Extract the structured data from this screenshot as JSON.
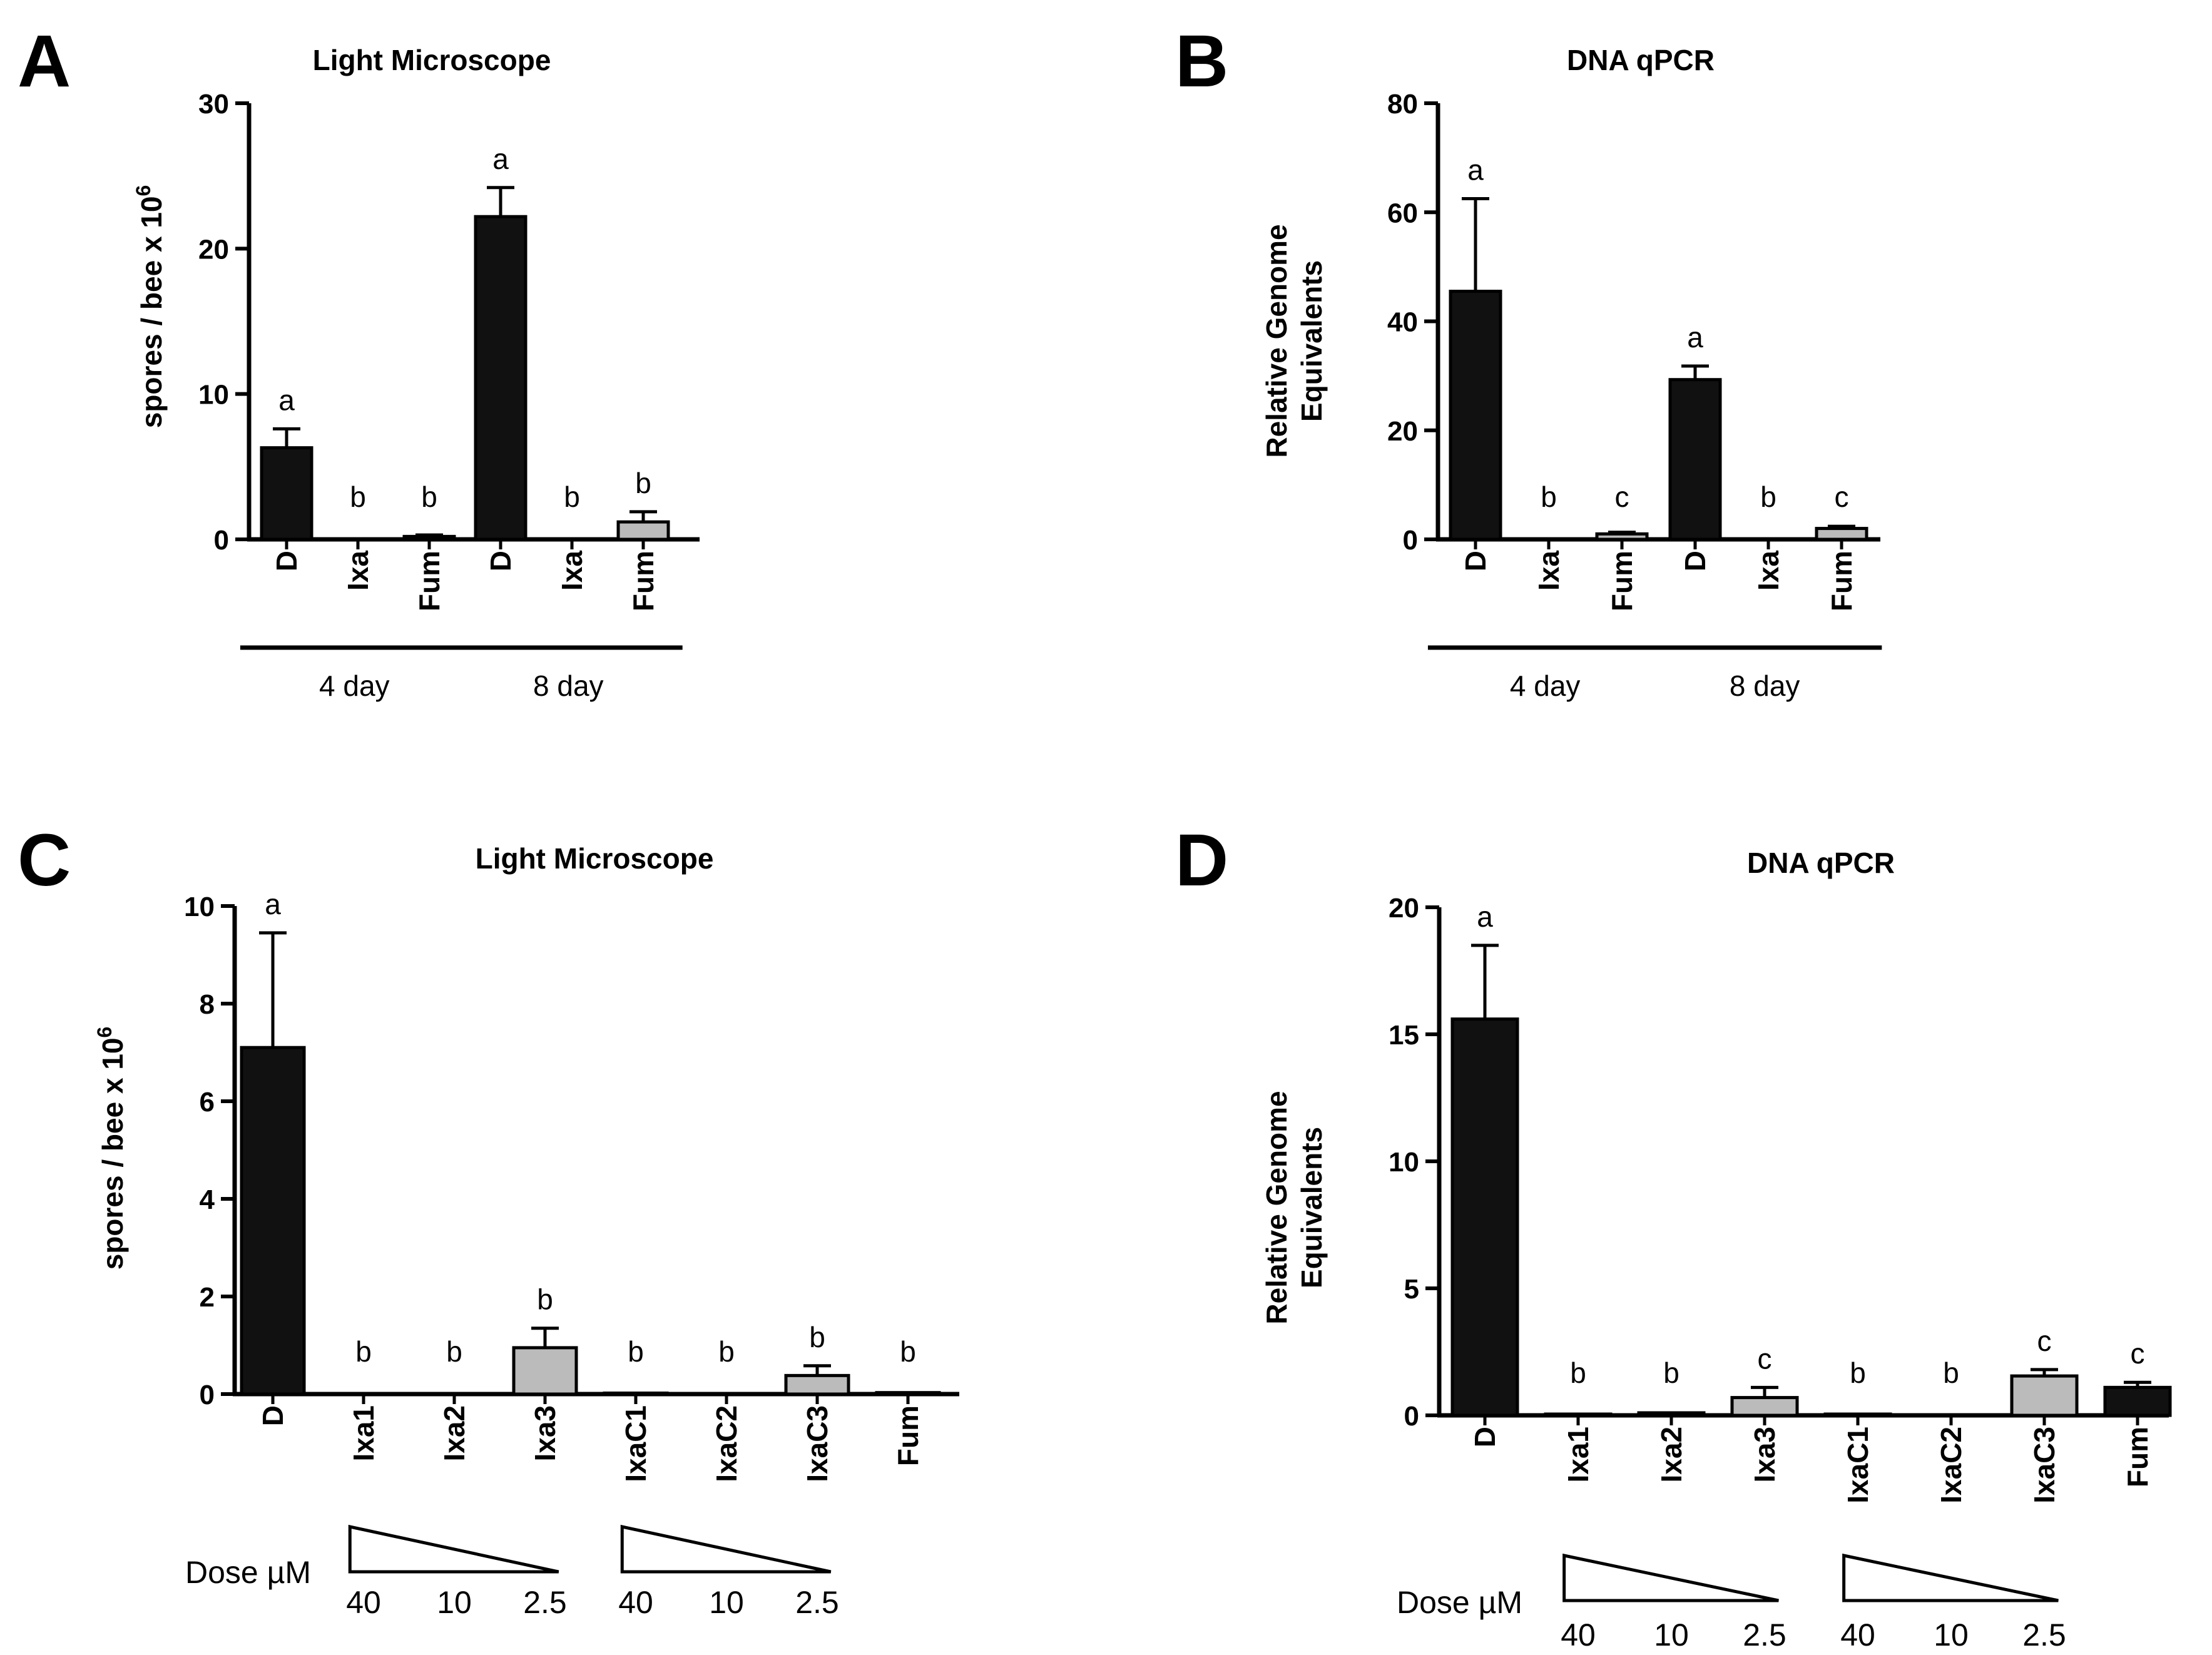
{
  "chart_data": [
    {
      "panel": "A",
      "type": "bar",
      "title": "Light Microscope",
      "ylabel_main": "spores / bee x 10",
      "ylabel_sup": "6",
      "ylim": [
        0,
        30
      ],
      "yticks": [
        0,
        10,
        20,
        30
      ],
      "categories": [
        "D",
        "Ixa",
        "Fum",
        "D",
        "Ixa",
        "Fum"
      ],
      "values": [
        6.3,
        0,
        0.2,
        22.2,
        0,
        1.2
      ],
      "errors": [
        1.3,
        0,
        0.1,
        2.0,
        0,
        0.7
      ],
      "colors": [
        "#111111",
        "#111111",
        "#bbbbbb",
        "#111111",
        "#111111",
        "#bbbbbb"
      ],
      "significance": [
        "a",
        "b",
        "b",
        "a",
        "b",
        "b"
      ],
      "groups": [
        {
          "label": "4 day",
          "from": 0,
          "to": 2
        },
        {
          "label": "8 day",
          "from": 3,
          "to": 5
        }
      ]
    },
    {
      "panel": "B",
      "type": "bar",
      "title": "DNA qPCR",
      "ylabel_lines": [
        "Relative Genome",
        "Equivalents"
      ],
      "ylim": [
        0,
        80
      ],
      "yticks": [
        0,
        20,
        40,
        60,
        80
      ],
      "categories": [
        "D",
        "Ixa",
        "Fum",
        "D",
        "Ixa",
        "Fum"
      ],
      "values": [
        45.5,
        0,
        1.0,
        29.3,
        0,
        2.0
      ],
      "errors": [
        17.0,
        0,
        0.3,
        2.5,
        0,
        0.4
      ],
      "colors": [
        "#111111",
        "#111111",
        "#bbbbbb",
        "#111111",
        "#111111",
        "#bbbbbb"
      ],
      "significance": [
        "a",
        "b",
        "c",
        "a",
        "b",
        "c"
      ],
      "groups": [
        {
          "label": "4 day",
          "from": 0,
          "to": 2
        },
        {
          "label": "8 day",
          "from": 3,
          "to": 5
        }
      ]
    },
    {
      "panel": "C",
      "type": "bar",
      "title": "Light Microscope",
      "ylabel_main": "spores / bee x 10",
      "ylabel_sup": "6",
      "ylim": [
        0,
        10
      ],
      "yticks": [
        0,
        2,
        4,
        6,
        8,
        10
      ],
      "categories": [
        "D",
        "Ixa1",
        "Ixa2",
        "Ixa3",
        "IxaC1",
        "IxaC2",
        "IxaC3",
        "Fum"
      ],
      "values": [
        7.1,
        0,
        0,
        0.95,
        0.02,
        0,
        0.38,
        0.03
      ],
      "errors": [
        2.35,
        0,
        0,
        0.4,
        0,
        0,
        0.2,
        0
      ],
      "colors": [
        "#111111",
        "#111111",
        "#111111",
        "#bbbbbb",
        "#111111",
        "#111111",
        "#bbbbbb",
        "#111111"
      ],
      "significance": [
        "a",
        "b",
        "b",
        "b",
        "b",
        "b",
        "b",
        "b"
      ],
      "dose_label": "Dose µM",
      "dose_groups": [
        {
          "from": 1,
          "to": 3,
          "values": [
            "40",
            "10",
            "2.5"
          ]
        },
        {
          "from": 4,
          "to": 6,
          "values": [
            "40",
            "10",
            "2.5"
          ]
        }
      ]
    },
    {
      "panel": "D",
      "type": "bar",
      "title": "DNA qPCR",
      "ylabel_lines": [
        "Relative Genome",
        "Equivalents"
      ],
      "ylim": [
        0,
        20
      ],
      "yticks": [
        0,
        5,
        10,
        15,
        20
      ],
      "categories": [
        "D",
        "Ixa1",
        "Ixa2",
        "Ixa3",
        "IxaC1",
        "IxaC2",
        "IxaC3",
        "Fum"
      ],
      "values": [
        15.6,
        0.05,
        0.1,
        0.7,
        0.05,
        0.02,
        1.55,
        1.1
      ],
      "errors": [
        2.9,
        0,
        0,
        0.4,
        0,
        0,
        0.25,
        0.2
      ],
      "colors": [
        "#111111",
        "#111111",
        "#111111",
        "#bbbbbb",
        "#111111",
        "#111111",
        "#bbbbbb",
        "#111111"
      ],
      "significance": [
        "a",
        "b",
        "b",
        "c",
        "b",
        "b",
        "c",
        "c"
      ],
      "dose_label": "Dose µM",
      "dose_groups": [
        {
          "from": 1,
          "to": 3,
          "values": [
            "40",
            "10",
            "2.5"
          ]
        },
        {
          "from": 4,
          "to": 6,
          "values": [
            "40",
            "10",
            "2.5"
          ]
        }
      ]
    }
  ]
}
